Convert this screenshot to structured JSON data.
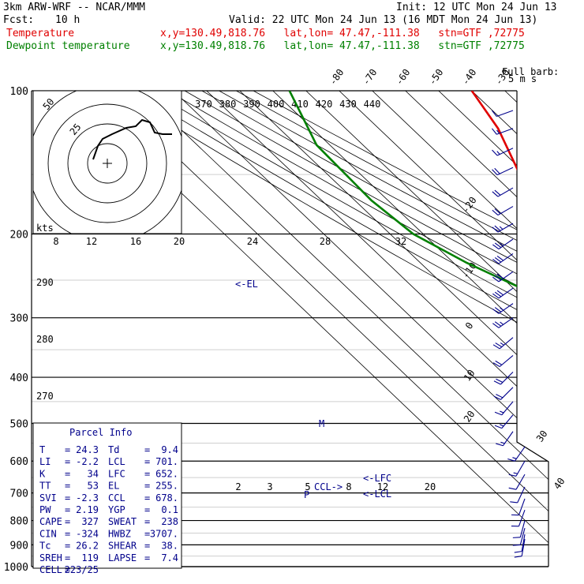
{
  "header": {
    "model": "3km ARW-WRF -- NCAR/MMM",
    "init": "Init: 12 UTC Mon 24 Jun 13",
    "fcst_label": "Fcst:",
    "fcst_value": "10 h",
    "valid": "Valid: 22 UTC Mon 24 Jun 13 (16 MDT Mon 24 Jun 13)",
    "temp_label": "Temperature",
    "temp_info": "x,y=130.49,818.76   lat,lon= 47.47,-111.38   stn=GTF ,72775",
    "dew_label": "Dewpoint temperature",
    "dew_info": "x,y=130.49,818.76   lat,lon= 47.47,-111.38   stn=GTF ,72775"
  },
  "colors": {
    "temperature": "#e00000",
    "dewpoint": "#008000",
    "annotation": "#00008b"
  },
  "chart_data": {
    "type": "line",
    "y_scale": "log-pressure",
    "ylim": [
      1000,
      100
    ],
    "pressure_labels": [
      "100",
      "200",
      "300",
      "400",
      "500",
      "600",
      "700",
      "800",
      "900",
      "1000"
    ],
    "pressure_levels": [
      100,
      200,
      300,
      400,
      500,
      600,
      700,
      800,
      900,
      1000
    ],
    "skewed_temp_labels": [
      "-80",
      "-70",
      "-60",
      "-50",
      "-40",
      "-30",
      "-20",
      "-10",
      "0",
      "10",
      "20",
      "30",
      "40"
    ],
    "skewed_temps": [
      -80,
      -70,
      -60,
      -50,
      -40,
      -30,
      -20,
      -10,
      0,
      10,
      20,
      30,
      40
    ],
    "theta_labels": [
      "370",
      "380",
      "390",
      "400",
      "410",
      "420",
      "430",
      "440"
    ],
    "dry_adiabat_labels": [
      "290",
      "280",
      "270"
    ],
    "mixing_ratio_labels": [
      "2",
      "3",
      "5",
      "8",
      "12",
      "20"
    ],
    "series": [
      {
        "name": "Temperature",
        "points": [
          [
            100,
            -40
          ],
          [
            120,
            -44
          ],
          [
            150,
            -52
          ],
          [
            180,
            -58
          ],
          [
            200,
            -61
          ],
          [
            230,
            -60
          ],
          [
            270,
            -53
          ],
          [
            300,
            -47
          ],
          [
            350,
            -37
          ],
          [
            400,
            -27
          ],
          [
            450,
            -18
          ],
          [
            500,
            -11
          ],
          [
            550,
            -4
          ],
          [
            600,
            1
          ],
          [
            650,
            6
          ],
          [
            700,
            11
          ],
          [
            750,
            15
          ],
          [
            800,
            19
          ],
          [
            850,
            23
          ],
          [
            870,
            24.3
          ]
        ]
      },
      {
        "name": "Dewpoint temperature",
        "points": [
          [
            100,
            -95
          ],
          [
            130,
            -104
          ],
          [
            170,
            -105
          ],
          [
            200,
            -103
          ],
          [
            230,
            -96
          ],
          [
            270,
            -85
          ],
          [
            300,
            -80
          ],
          [
            330,
            -82
          ],
          [
            350,
            -83
          ],
          [
            380,
            -70
          ],
          [
            420,
            -58
          ],
          [
            450,
            -53
          ],
          [
            500,
            -33
          ],
          [
            550,
            -23
          ],
          [
            600,
            -12
          ],
          [
            650,
            -6
          ],
          [
            700,
            -1
          ],
          [
            750,
            2
          ],
          [
            800,
            8
          ],
          [
            820,
            9
          ],
          [
            870,
            9.4
          ]
        ]
      }
    ],
    "annotations": {
      "el": "<-EL",
      "lfc": "<-LFC",
      "lcl": "<-LCL",
      "ccl": "CCL->",
      "m": "M",
      "p": "P"
    },
    "hodograph": {
      "units": "kts",
      "ring_labels": [
        "50",
        "25"
      ],
      "speed_labels": [
        "8",
        "12",
        "16",
        "20",
        "24",
        "28",
        "32"
      ],
      "points": [
        [
          0,
          0
        ],
        [
          -4,
          8
        ],
        [
          -2,
          14
        ],
        [
          6,
          16
        ],
        [
          12,
          18
        ],
        [
          16,
          22
        ],
        [
          20,
          26
        ],
        [
          22,
          20
        ],
        [
          24,
          17
        ],
        [
          28,
          18
        ]
      ]
    },
    "wind_barbs": {
      "legend_title": "Full barb:",
      "legend_units": "5 m s",
      "levels": [
        {
          "p": 110,
          "spd": 10,
          "dir": 250
        },
        {
          "p": 120,
          "spd": 15,
          "dir": 250
        },
        {
          "p": 132,
          "spd": 15,
          "dir": 245
        },
        {
          "p": 145,
          "spd": 20,
          "dir": 245
        },
        {
          "p": 160,
          "spd": 20,
          "dir": 240
        },
        {
          "p": 175,
          "spd": 20,
          "dir": 240
        },
        {
          "p": 190,
          "spd": 25,
          "dir": 240
        },
        {
          "p": 205,
          "spd": 25,
          "dir": 235
        },
        {
          "p": 220,
          "spd": 30,
          "dir": 235
        },
        {
          "p": 240,
          "spd": 30,
          "dir": 235
        },
        {
          "p": 260,
          "spd": 30,
          "dir": 235
        },
        {
          "p": 280,
          "spd": 25,
          "dir": 235
        },
        {
          "p": 300,
          "spd": 25,
          "dir": 235
        },
        {
          "p": 330,
          "spd": 25,
          "dir": 230
        },
        {
          "p": 360,
          "spd": 20,
          "dir": 230
        },
        {
          "p": 390,
          "spd": 20,
          "dir": 225
        },
        {
          "p": 420,
          "spd": 20,
          "dir": 225
        },
        {
          "p": 450,
          "spd": 15,
          "dir": 220
        },
        {
          "p": 480,
          "spd": 15,
          "dir": 220
        },
        {
          "p": 520,
          "spd": 15,
          "dir": 215
        },
        {
          "p": 560,
          "spd": 15,
          "dir": 215
        },
        {
          "p": 600,
          "spd": 15,
          "dir": 210
        },
        {
          "p": 640,
          "spd": 10,
          "dir": 210
        },
        {
          "p": 680,
          "spd": 10,
          "dir": 205
        },
        {
          "p": 720,
          "spd": 10,
          "dir": 200
        },
        {
          "p": 760,
          "spd": 10,
          "dir": 200
        },
        {
          "p": 800,
          "spd": 10,
          "dir": 195
        },
        {
          "p": 830,
          "spd": 10,
          "dir": 195
        },
        {
          "p": 855,
          "spd": 10,
          "dir": 190
        },
        {
          "p": 875,
          "spd": 10,
          "dir": 190
        }
      ]
    }
  },
  "parcel_info": {
    "title": "Parcel Info",
    "rows": [
      [
        "T",
        "=",
        "24.3",
        "Td",
        "=",
        "9.4"
      ],
      [
        "LI",
        "=",
        "-2.2",
        "LCL",
        "=",
        "701."
      ],
      [
        "K",
        "=",
        "34",
        "LFC",
        "=",
        "652."
      ],
      [
        "TT",
        "=",
        "53",
        "EL",
        "=",
        "255."
      ],
      [
        "SVI",
        "=",
        "-2.3",
        "CCL",
        "=",
        "678."
      ],
      [
        "PW",
        "=",
        "2.19",
        "YGP",
        "=",
        "0.1"
      ],
      [
        "CAPE",
        "=",
        "327",
        "SWEAT",
        "=",
        "238"
      ],
      [
        "CIN",
        "=",
        "-324",
        "HWBZ",
        "=",
        "3707."
      ],
      [
        "Tc",
        "=",
        "26.2",
        "SHEAR",
        "=",
        "38."
      ],
      [
        "SREH",
        "=",
        "119",
        "LAPSE",
        "=",
        "7.4"
      ],
      [
        "CELL",
        "=",
        "223/25",
        "",
        "",
        ""
      ]
    ]
  }
}
